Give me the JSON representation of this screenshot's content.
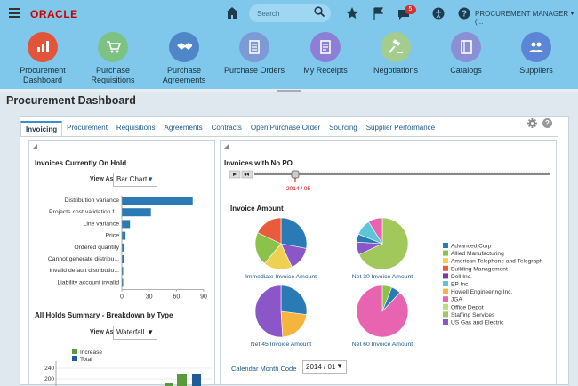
{
  "header": {
    "logo": "ORACLE",
    "search_placeholder": "Search",
    "notifications_count": "5",
    "role": "PROCUREMENT MANAGER (...",
    "role_caret": "▼"
  },
  "nav": [
    {
      "label": "Procurement Dashboard",
      "color": "#e3553a",
      "icon": "dashboard-chart-icon"
    },
    {
      "label": "Purchase Requisitions",
      "color": "#7cc383",
      "icon": "cart-icon"
    },
    {
      "label": "Purchase Agreements",
      "color": "#4e86c7",
      "icon": "handshake-icon"
    },
    {
      "label": "Purchase Orders",
      "color": "#7e9ad6",
      "icon": "document-icon"
    },
    {
      "label": "My Receipts",
      "color": "#8d7fd5",
      "icon": "receipt-icon"
    },
    {
      "label": "Negotiations",
      "color": "#a4cc8f",
      "icon": "gavel-icon"
    },
    {
      "label": "Catalogs",
      "color": "#8b8fd6",
      "icon": "book-icon"
    },
    {
      "label": "Suppliers",
      "color": "#5b86d6",
      "icon": "people-icon"
    }
  ],
  "page_title": "Procurement Dashboard",
  "tabs": [
    "Invoicing",
    "Procurement",
    "Requisitions",
    "Agreements",
    "Contracts",
    "Open Purchase Order",
    "Sourcing",
    "Supplier Performance"
  ],
  "left": {
    "hold_title": "Invoices Currently On Hold",
    "view_as": "View As",
    "view_value": "Bar Chart",
    "hold_chart": {
      "type": "bar",
      "categories": [
        "Distribution variance",
        "Projects cost validation f...",
        "Line variance",
        "Price",
        "Ordered quantity",
        "Cannot generate distribu...",
        "Invalid default distributio...",
        "Liability account invalid"
      ],
      "values": [
        78,
        32,
        9,
        4,
        3,
        2,
        1,
        1
      ],
      "xticks": [
        "0",
        "30",
        "60",
        "90"
      ],
      "xlim": [
        0,
        90
      ],
      "color": "#2a7ab6"
    },
    "holds_title": "All Holds Summary - Breakdown by Type",
    "view_value2": "Waterfall",
    "waterfall": {
      "type": "bar",
      "legend": [
        {
          "name": "Increase",
          "color": "#5b9a3b"
        },
        {
          "name": "Total",
          "color": "#1e5e96"
        }
      ],
      "yticks": [
        "240",
        "200"
      ]
    }
  },
  "right": {
    "nopo_title": "Invoices with No PO",
    "slider_label": "2014 / 05",
    "amount_title": "Invoice Amount",
    "pie_charts": [
      {
        "label": "Immediate Invoice Amount",
        "values": [
          28,
          15,
          18,
          21,
          18
        ]
      },
      {
        "label": "Net 30 Invoice Amount",
        "values": [
          68,
          8,
          5,
          10,
          9
        ]
      },
      {
        "label": "Net 45 Invoice Amount",
        "values": [
          27,
          22,
          51
        ]
      },
      {
        "label": "Net 60 Invoice Amount",
        "values": [
          6,
          6,
          88
        ]
      }
    ],
    "legend": [
      {
        "name": "Advanced Corp",
        "color": "#2a7ab6"
      },
      {
        "name": "Allied Manufacturing",
        "color": "#8ac24a"
      },
      {
        "name": "American Telephone and Telegraph",
        "color": "#f0d050"
      },
      {
        "name": "Building Management",
        "color": "#ea5a3c"
      },
      {
        "name": "Dell Inc.",
        "color": "#7b3aa0"
      },
      {
        "name": "EP Inc",
        "color": "#5bc6d8"
      },
      {
        "name": "Howell Engineering Inc.",
        "color": "#f5b43b"
      },
      {
        "name": "JGA",
        "color": "#e864b0"
      },
      {
        "name": "Office Depot",
        "color": "#b8e07a"
      },
      {
        "name": "Staffing Services",
        "color": "#a0c85a"
      },
      {
        "name": "US Gas and Electric",
        "color": "#8a56c8"
      }
    ],
    "month_label": "Calendar Month Code",
    "month_value": "2014 / 01"
  }
}
